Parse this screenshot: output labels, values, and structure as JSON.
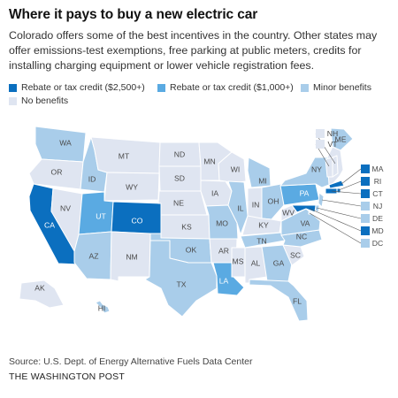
{
  "title": "Where it pays to buy a new electric car",
  "subtitle": "Colorado offers some of the best incentives in the country. Other states may offer emissions-test exemptions, free parking at public meters, credits for installing charging equipment or lower vehicle registration fees.",
  "legend": [
    {
      "label": "Rebate or tax credit ($2,500+)",
      "color": "#0b6fbf"
    },
    {
      "label": "Rebate or tax credit ($1,000+)",
      "color": "#5aaae2"
    },
    {
      "label": "Minor benefits",
      "color": "#a9cdea"
    },
    {
      "label": "No benefits",
      "color": "#dfe5f1"
    }
  ],
  "colors": {
    "tier_2500": "#0b6fbf",
    "tier_1000": "#5aaae2",
    "minor": "#a9cdea",
    "none": "#dfe5f1",
    "label_dark": "#4a4a4a",
    "label_light": "#ffffff"
  },
  "states": [
    {
      "code": "WA",
      "tier": "minor"
    },
    {
      "code": "OR",
      "tier": "none"
    },
    {
      "code": "CA",
      "tier": "tier_2500"
    },
    {
      "code": "NV",
      "tier": "none"
    },
    {
      "code": "ID",
      "tier": "minor"
    },
    {
      "code": "MT",
      "tier": "none"
    },
    {
      "code": "WY",
      "tier": "none"
    },
    {
      "code": "UT",
      "tier": "tier_1000"
    },
    {
      "code": "CO",
      "tier": "tier_2500"
    },
    {
      "code": "AZ",
      "tier": "minor"
    },
    {
      "code": "NM",
      "tier": "none"
    },
    {
      "code": "ND",
      "tier": "none"
    },
    {
      "code": "SD",
      "tier": "none"
    },
    {
      "code": "NE",
      "tier": "none"
    },
    {
      "code": "KS",
      "tier": "none"
    },
    {
      "code": "OK",
      "tier": "minor"
    },
    {
      "code": "TX",
      "tier": "minor"
    },
    {
      "code": "MN",
      "tier": "none"
    },
    {
      "code": "IA",
      "tier": "none"
    },
    {
      "code": "MO",
      "tier": "minor"
    },
    {
      "code": "AR",
      "tier": "none"
    },
    {
      "code": "LA",
      "tier": "tier_1000"
    },
    {
      "code": "WI",
      "tier": "none"
    },
    {
      "code": "IL",
      "tier": "minor"
    },
    {
      "code": "MI",
      "tier": "minor"
    },
    {
      "code": "IN",
      "tier": "none"
    },
    {
      "code": "OH",
      "tier": "minor"
    },
    {
      "code": "KY",
      "tier": "none"
    },
    {
      "code": "TN",
      "tier": "minor"
    },
    {
      "code": "MS",
      "tier": "none"
    },
    {
      "code": "AL",
      "tier": "none"
    },
    {
      "code": "GA",
      "tier": "minor"
    },
    {
      "code": "FL",
      "tier": "minor"
    },
    {
      "code": "SC",
      "tier": "none"
    },
    {
      "code": "NC",
      "tier": "minor"
    },
    {
      "code": "VA",
      "tier": "minor"
    },
    {
      "code": "WV",
      "tier": "none"
    },
    {
      "code": "PA",
      "tier": "tier_1000"
    },
    {
      "code": "NY",
      "tier": "minor"
    },
    {
      "code": "ME",
      "tier": "minor"
    },
    {
      "code": "AK",
      "tier": "none"
    },
    {
      "code": "HI",
      "tier": "minor"
    }
  ],
  "callout_states": [
    {
      "code": "NH",
      "tier": "none"
    },
    {
      "code": "VT",
      "tier": "none"
    },
    {
      "code": "MA",
      "tier": "tier_2500"
    },
    {
      "code": "RI",
      "tier": "tier_2500"
    },
    {
      "code": "CT",
      "tier": "tier_2500"
    },
    {
      "code": "NJ",
      "tier": "minor"
    },
    {
      "code": "DE",
      "tier": "minor"
    },
    {
      "code": "MD",
      "tier": "tier_2500"
    },
    {
      "code": "DC",
      "tier": "minor"
    }
  ],
  "source": "Source: U.S. Dept. of Energy Alternative Fuels Data Center",
  "credit": "THE WASHINGTON POST"
}
